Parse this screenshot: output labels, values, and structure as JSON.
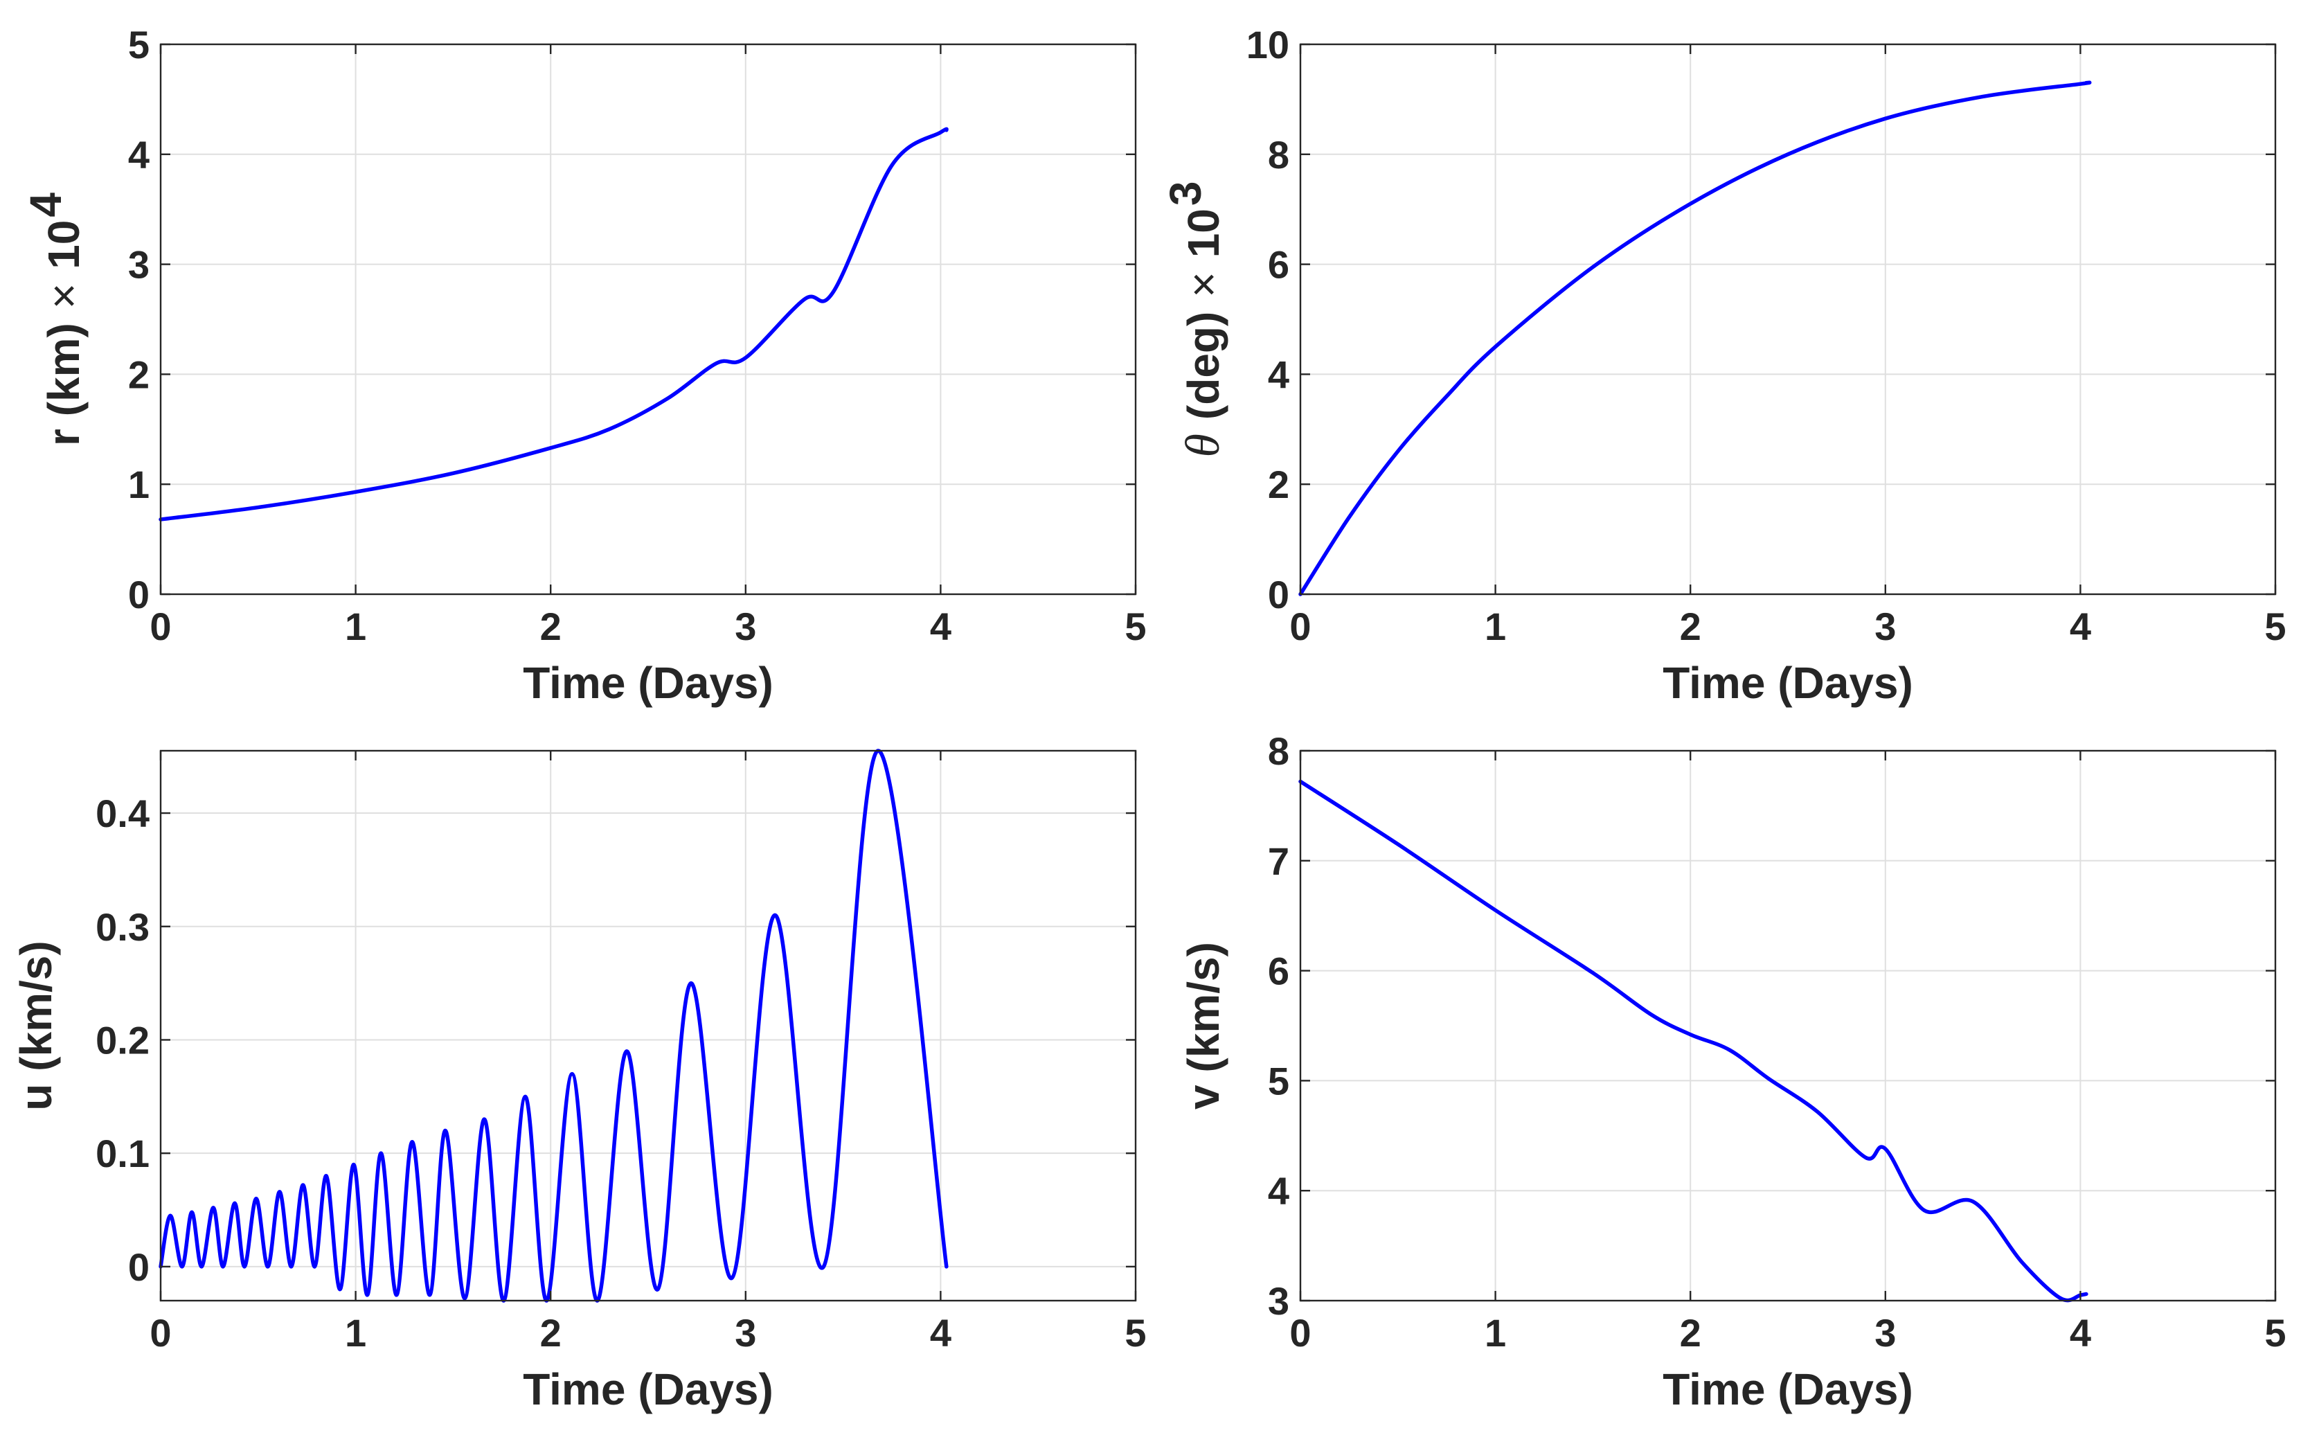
{
  "colors": {
    "series": "#0000ff",
    "axis": "#262626",
    "grid": "#dfdfdf",
    "background": "#ffffff"
  },
  "chart_data": [
    {
      "id": "r",
      "type": "line",
      "title": "",
      "xlabel": "Time (Days)",
      "ylabel_main": "r (km)",
      "ylabel_times": "×",
      "ylabel_base": "10",
      "ylabel_exp": "4",
      "xlim": [
        0,
        5
      ],
      "ylim": [
        0,
        5
      ],
      "xticks": [
        0,
        1,
        2,
        3,
        4,
        5
      ],
      "yticks": [
        0,
        1,
        2,
        3,
        4,
        5
      ],
      "xticklabels": [
        "0",
        "1",
        "2",
        "3",
        "4",
        "5"
      ],
      "yticklabels": [
        "0",
        "1",
        "2",
        "3",
        "4",
        "5"
      ],
      "grid": true,
      "series": [
        {
          "name": "r",
          "x": [
            0,
            0.5,
            1.0,
            1.5,
            2.0,
            2.3,
            2.6,
            2.85,
            3.0,
            3.3,
            3.45,
            3.75,
            4.0,
            4.03
          ],
          "y": [
            0.68,
            0.79,
            0.93,
            1.1,
            1.33,
            1.5,
            1.78,
            2.1,
            2.15,
            2.68,
            2.75,
            3.9,
            4.2,
            4.22
          ]
        }
      ]
    },
    {
      "id": "theta",
      "type": "line",
      "title": "",
      "xlabel": "Time (Days)",
      "ylabel_symbol": "θ",
      "ylabel_main": "(deg)",
      "ylabel_times": "×",
      "ylabel_base": "10",
      "ylabel_exp": "3",
      "xlim": [
        0,
        5
      ],
      "ylim": [
        0,
        10
      ],
      "xticks": [
        0,
        1,
        2,
        3,
        4,
        5
      ],
      "yticks": [
        0,
        2,
        4,
        6,
        8,
        10
      ],
      "xticklabels": [
        "0",
        "1",
        "2",
        "3",
        "4",
        "5"
      ],
      "yticklabels": [
        "0",
        "2",
        "4",
        "6",
        "8",
        "10"
      ],
      "grid": true,
      "series": [
        {
          "name": "theta",
          "x": [
            0,
            0.25,
            0.5,
            0.75,
            1.0,
            1.5,
            2.0,
            2.5,
            3.0,
            3.5,
            4.0,
            4.03
          ],
          "y": [
            0,
            1.4,
            2.6,
            3.6,
            4.5,
            5.95,
            7.1,
            8.0,
            8.65,
            9.05,
            9.28,
            9.3
          ]
        }
      ]
    },
    {
      "id": "u",
      "type": "line",
      "title": "",
      "xlabel": "Time (Days)",
      "ylabel_main": "u (km/s)",
      "xlim": [
        0,
        5
      ],
      "ylim": [
        -0.03,
        0.455
      ],
      "xticks": [
        0,
        1,
        2,
        3,
        4,
        5
      ],
      "yticks": [
        0,
        0.1,
        0.2,
        0.3,
        0.4
      ],
      "xticklabels": [
        "0",
        "1",
        "2",
        "3",
        "4",
        "5"
      ],
      "yticklabels": [
        "0",
        "0.1",
        "0.2",
        "0.3",
        "0.4"
      ],
      "grid": true,
      "series": [
        {
          "name": "u",
          "x": [
            0.0,
            0.05,
            0.11,
            0.16,
            0.21,
            0.27,
            0.32,
            0.38,
            0.43,
            0.49,
            0.55,
            0.61,
            0.67,
            0.73,
            0.79,
            0.85,
            0.92,
            0.99,
            1.06,
            1.13,
            1.21,
            1.29,
            1.38,
            1.46,
            1.56,
            1.66,
            1.76,
            1.87,
            1.98,
            2.11,
            2.24,
            2.39,
            2.55,
            2.72,
            2.93,
            3.15,
            3.4,
            3.68,
            4.03
          ],
          "y": [
            0.0,
            0.045,
            0.0,
            0.048,
            0.0,
            0.052,
            0.0,
            0.056,
            0.0,
            0.06,
            0.0,
            0.066,
            0.0,
            0.072,
            0.0,
            0.08,
            -0.02,
            0.09,
            -0.025,
            0.1,
            -0.025,
            0.11,
            -0.025,
            0.12,
            -0.028,
            0.13,
            -0.03,
            0.15,
            -0.03,
            0.17,
            -0.03,
            0.19,
            -0.02,
            0.25,
            -0.01,
            0.31,
            0.0,
            0.455,
            0.0
          ]
        }
      ]
    },
    {
      "id": "v",
      "type": "line",
      "title": "",
      "xlabel": "Time (Days)",
      "ylabel_main": "v (km/s)",
      "xlim": [
        0,
        5
      ],
      "ylim": [
        3,
        8
      ],
      "xticks": [
        0,
        1,
        2,
        3,
        4,
        5
      ],
      "yticks": [
        3,
        4,
        5,
        6,
        7,
        8
      ],
      "xticklabels": [
        "0",
        "1",
        "2",
        "3",
        "4",
        "5"
      ],
      "yticklabels": [
        "3",
        "4",
        "5",
        "6",
        "7",
        "8"
      ],
      "grid": true,
      "series": [
        {
          "name": "v",
          "x": [
            0,
            0.5,
            1.0,
            1.5,
            1.8,
            2.0,
            2.2,
            2.4,
            2.65,
            2.9,
            3.0,
            3.2,
            3.45,
            3.7,
            3.9,
            4.0,
            4.03
          ],
          "y": [
            7.72,
            7.15,
            6.55,
            5.98,
            5.6,
            5.42,
            5.28,
            5.02,
            4.72,
            4.3,
            4.38,
            3.82,
            3.9,
            3.35,
            3.02,
            3.05,
            3.06
          ]
        }
      ]
    }
  ]
}
